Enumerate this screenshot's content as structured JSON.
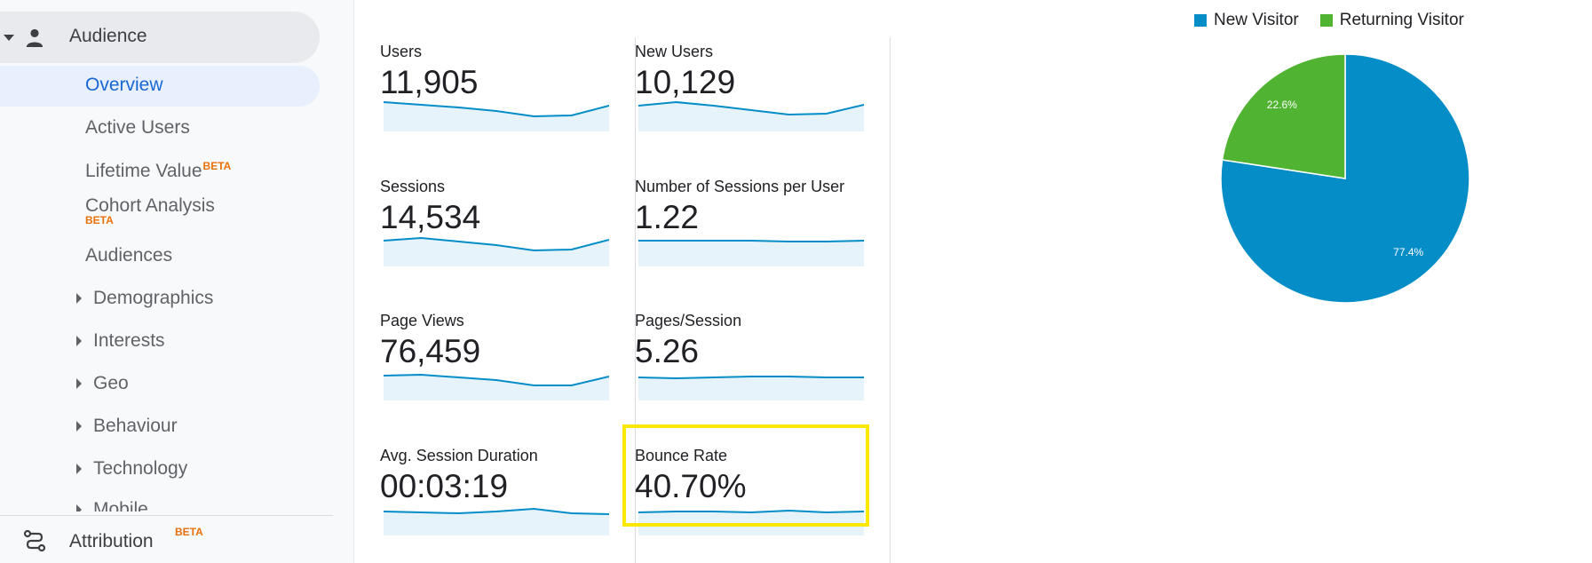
{
  "sidebar": {
    "audience_label": "Audience",
    "overview_label": "Overview",
    "items": [
      {
        "label": "Active Users"
      },
      {
        "label": "Lifetime Value",
        "badge": "BETA"
      },
      {
        "label": "Cohort Analysis",
        "badge": "BETA"
      },
      {
        "label": "Audiences"
      }
    ],
    "subitems": [
      {
        "label": "Demographics"
      },
      {
        "label": "Interests"
      },
      {
        "label": "Geo"
      },
      {
        "label": "Behaviour"
      },
      {
        "label": "Technology"
      },
      {
        "label": "Mobile"
      }
    ],
    "attribution_label": "Attribution",
    "attribution_badge": "BETA"
  },
  "metrics": [
    {
      "label": "Users",
      "value": "11,905"
    },
    {
      "label": "New Users",
      "value": "10,129"
    },
    {
      "label": "Sessions",
      "value": "14,534"
    },
    {
      "label": "Number of Sessions per User",
      "value": "1.22"
    },
    {
      "label": "Page Views",
      "value": "76,459"
    },
    {
      "label": "Pages/Session",
      "value": "5.26"
    },
    {
      "label": "Avg. Session Duration",
      "value": "00:03:19"
    },
    {
      "label": "Bounce Rate",
      "value": "40.70%"
    }
  ],
  "colors": {
    "new_visitor": "#058dc7",
    "returning_visitor": "#50b432",
    "sparkline": "#058dc7",
    "sparkline_fill": "#e6f3fa",
    "highlight": "#ffe800"
  },
  "chart_data": {
    "type": "pie",
    "legend": [
      "New Visitor",
      "Returning Visitor"
    ],
    "slices": [
      {
        "name": "New Visitor",
        "value": 77.4,
        "label": "77.4%"
      },
      {
        "name": "Returning Visitor",
        "value": 22.6,
        "label": "22.6%"
      }
    ],
    "legend_position": "top"
  }
}
